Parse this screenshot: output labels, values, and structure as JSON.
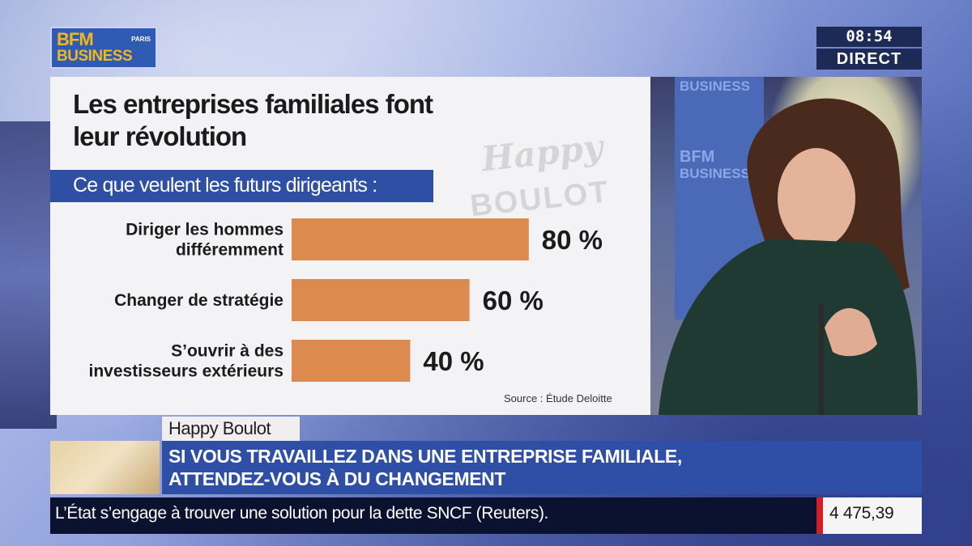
{
  "channel": {
    "logo_line1": "BFM",
    "logo_paris": "PARIS",
    "logo_line2": "BUSINESS",
    "time": "08:54",
    "live": "DIRECT"
  },
  "graphic": {
    "title_line1": "Les entreprises familiales font",
    "title_line2": "leur révolution",
    "subtitle": "Ce que veulent les futurs dirigeants :",
    "watermark_line1": "Happy",
    "watermark_line2": "BOULOT",
    "source": "Source : Étude Deloitte"
  },
  "chart_data": {
    "type": "bar",
    "orientation": "horizontal",
    "title": "Ce que veulent les futurs dirigeants :",
    "categories": [
      [
        "Diriger les hommes",
        "différemment"
      ],
      [
        "Changer de stratégie"
      ],
      [
        "S’ouvrir à des",
        "investisseurs extérieurs"
      ]
    ],
    "values": [
      80,
      60,
      40
    ],
    "value_labels": [
      "80 %",
      "60 %",
      "40 %"
    ],
    "unit": "%",
    "xlim": [
      0,
      100
    ],
    "bar_color": "#dc8a4e",
    "grid": false,
    "source": "Source : Étude Deloitte"
  },
  "studio": {
    "screen_text1": "BUSINESS",
    "screen_text2": "BFM",
    "screen_text3": "BUSINESS"
  },
  "lower_third": {
    "show": "Happy Boulot",
    "headline_line1": "SI VOUS TRAVAILLEZ DANS UNE ENTREPRISE FAMILIALE,",
    "headline_line2": "ATTENDEZ-VOUS À DU CHANGEMENT"
  },
  "ticker": {
    "text": "L’État s’engage à trouver une solution pour la dette SNCF (Reuters).",
    "market_value": "4 475,39"
  }
}
